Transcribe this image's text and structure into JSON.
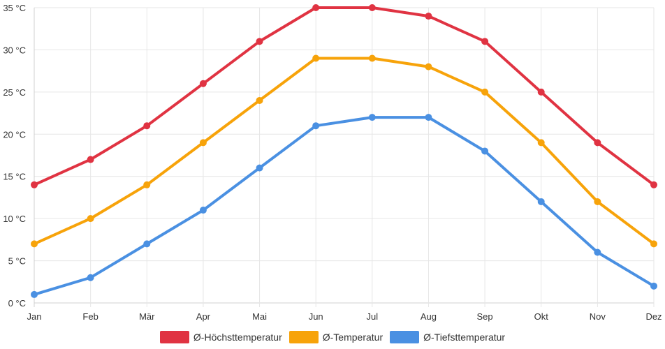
{
  "chart_data": {
    "type": "line",
    "categories": [
      "Jan",
      "Feb",
      "Mär",
      "Apr",
      "Mai",
      "Jun",
      "Jul",
      "Aug",
      "Sep",
      "Okt",
      "Nov",
      "Dez"
    ],
    "ylim": [
      0,
      35
    ],
    "yticks": [
      "0 °C",
      "5 °C",
      "10 °C",
      "15 °C",
      "20 °C",
      "25 °C",
      "30 °C",
      "35 °C"
    ],
    "grid": true,
    "legend_position": "bottom",
    "series": [
      {
        "name": "Ø-Höchsttemperatur",
        "color": "#e03342",
        "values": [
          14,
          17,
          21,
          26,
          31,
          35,
          35,
          34,
          31,
          25,
          19,
          14
        ]
      },
      {
        "name": "Ø-Temperatur",
        "color": "#f7a30a",
        "values": [
          7,
          10,
          14,
          19,
          24,
          29,
          29,
          28,
          25,
          19,
          12,
          7
        ]
      },
      {
        "name": "Ø-Tiefsttemperatur",
        "color": "#4a90e2",
        "values": [
          1,
          3,
          7,
          11,
          16,
          21,
          22,
          22,
          18,
          12,
          6,
          2
        ]
      }
    ]
  }
}
